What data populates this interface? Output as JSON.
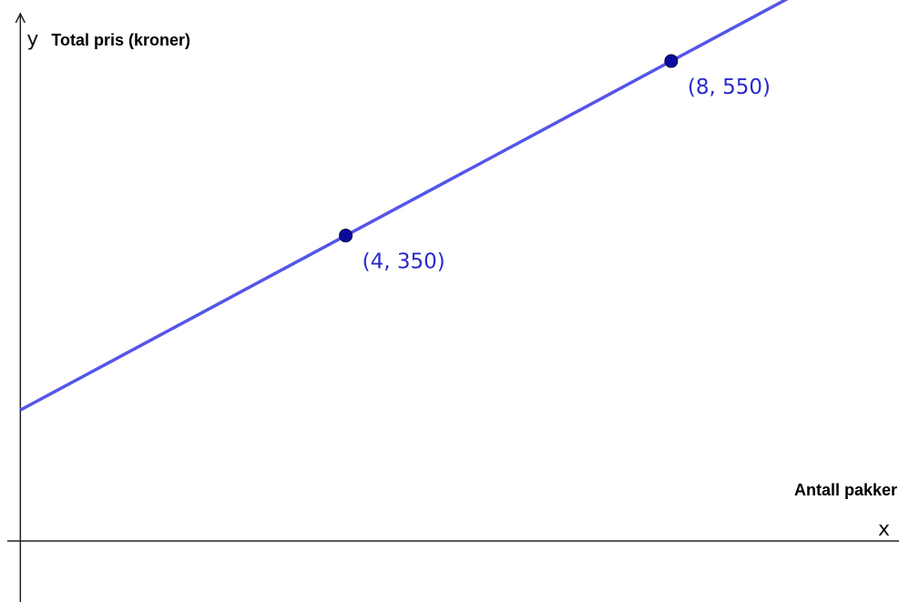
{
  "chart_data": {
    "type": "line",
    "xlabel": "Antall pakker",
    "ylabel": "Total pris (kroner)",
    "x_axis_letter": "x",
    "y_axis_letter": "y",
    "xlim": [
      -0.25,
      10.8
    ],
    "ylim": [
      -70,
      620
    ],
    "grid": false,
    "line": {
      "slope": 50,
      "intercept": 150,
      "color": "#5555e8"
    },
    "points": [
      {
        "x": 4,
        "y": 350,
        "label": "(4, 350)"
      },
      {
        "x": 8,
        "y": 550,
        "label": "(8, 550)"
      }
    ],
    "point_color": "#0a0aa0",
    "label_color": "#2a2acc"
  }
}
